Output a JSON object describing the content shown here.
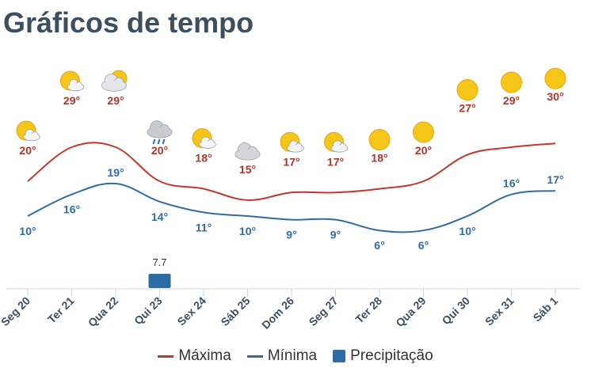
{
  "page": {
    "title": "Gráficos de tempo"
  },
  "colors": {
    "max": "#c0392b",
    "min": "#2e6da4",
    "precip": "#2e6da4",
    "label_max": "#b0342a",
    "label_min": "#2e6da4"
  },
  "chart_data": {
    "type": "line",
    "categories": [
      "Seg 20",
      "Ter 21",
      "Qua 22",
      "Qui 23",
      "Sex 24",
      "Sáb 25",
      "Dom 26",
      "Seg 27",
      "Ter 28",
      "Qua 29",
      "Qui 30",
      "Sex 31",
      "Sáb 1"
    ],
    "series": [
      {
        "name": "Máxima",
        "values": [
          20,
          29,
          29,
          20,
          18,
          15,
          17,
          17,
          18,
          20,
          27,
          29,
          30
        ],
        "labels": [
          "20°",
          "29°",
          "29°",
          "20°",
          "18°",
          "15°",
          "17°",
          "17°",
          "18°",
          "20°",
          "27°",
          "29°",
          "30°"
        ]
      },
      {
        "name": "Mínima",
        "values": [
          10,
          16,
          19,
          14,
          11,
          10,
          9,
          9,
          6,
          6,
          10,
          16,
          17
        ],
        "labels": [
          "10°",
          "16°",
          "19°",
          "14°",
          "11°",
          "10°",
          "9°",
          "9°",
          "6°",
          "6°",
          "10°",
          "16°",
          "17°"
        ]
      },
      {
        "name": "Precipitação",
        "type": "bar",
        "values": [
          null,
          null,
          null,
          7.7,
          null,
          null,
          null,
          null,
          null,
          null,
          null,
          null,
          null
        ],
        "labels": [
          "",
          "",
          "",
          "7.7",
          "",
          "",
          "",
          "",
          "",
          "",
          "",
          "",
          ""
        ]
      }
    ],
    "icons": [
      "partly-cloudy-icon",
      "partly-cloudy-icon",
      "mostly-cloudy-icon",
      "rain-cloud-icon",
      "partly-cloudy-icon",
      "cloudy-icon",
      "partly-cloudy-icon",
      "partly-cloudy-icon",
      "sunny-icon",
      "sunny-icon",
      "sunny-icon",
      "sunny-icon",
      "sunny-icon"
    ],
    "legend": {
      "position": "bottom"
    },
    "grid": false
  }
}
